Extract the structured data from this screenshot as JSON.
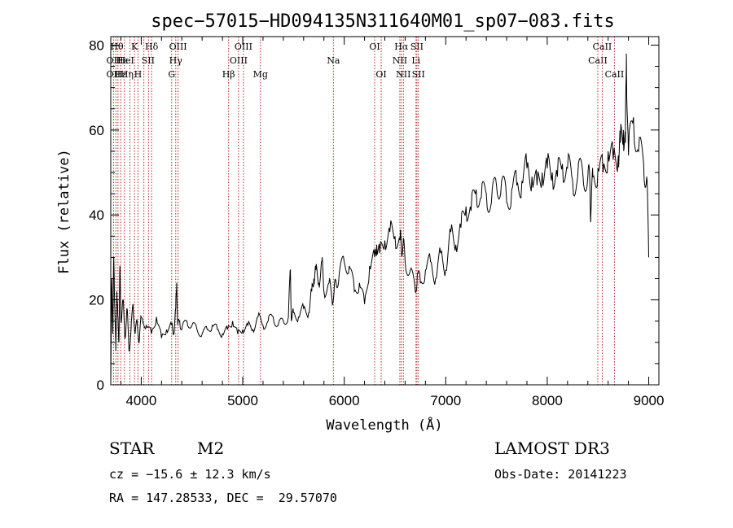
{
  "info": {
    "object_class": "STAR",
    "subclass": "M2",
    "survey": "LAMOST DR3",
    "redshift": "cz = −15.6 ± 12.3 km/s",
    "obs_date": "Obs-Date: 20141223",
    "coords": "RA = 147.28533, DEC =  29.57070"
  },
  "chart_data": {
    "type": "line",
    "title": "spec−57015−HD094135N311640M01_sp07−083.fits",
    "xlabel": "Wavelength (Å)",
    "ylabel": "Flux (relative)",
    "xlim": [
      3700,
      9100
    ],
    "ylim": [
      0,
      82
    ],
    "xticks": [
      4000,
      5000,
      6000,
      7000,
      8000,
      9000
    ],
    "yticks": [
      0,
      20,
      40,
      60,
      80
    ],
    "grid": false,
    "series": [
      {
        "x": [
          3700,
          3710,
          3720,
          3730,
          3740,
          3750,
          3760,
          3770,
          3780,
          3790,
          3800,
          3820,
          3840,
          3860,
          3880,
          3900,
          3920,
          3940,
          3960,
          3980,
          4000,
          4050,
          4100,
          4150,
          4200,
          4250,
          4300,
          4320,
          4340,
          4350,
          4360,
          4380,
          4400,
          4450,
          4500,
          4550,
          4600,
          4650,
          4700,
          4750,
          4800,
          4850,
          4900,
          4950,
          5000,
          5050,
          5100,
          5150,
          5200,
          5250,
          5300,
          5350,
          5400,
          5450,
          5470,
          5480,
          5500,
          5550,
          5600,
          5650,
          5680,
          5700,
          5720,
          5750,
          5780,
          5800,
          5850,
          5880,
          5900,
          5920,
          5950,
          6000,
          6050,
          6100,
          6150,
          6200,
          6250,
          6300,
          6320,
          6350,
          6400,
          6450,
          6500,
          6550,
          6563,
          6580,
          6600,
          6650,
          6700,
          6720,
          6750,
          6800,
          6850,
          6900,
          6950,
          7000,
          7050,
          7100,
          7150,
          7200,
          7250,
          7300,
          7350,
          7400,
          7450,
          7500,
          7550,
          7600,
          7650,
          7700,
          7750,
          7800,
          7850,
          7900,
          7950,
          8000,
          8050,
          8100,
          8150,
          8200,
          8250,
          8300,
          8350,
          8400,
          8420,
          8430,
          8450,
          8500,
          8550,
          8600,
          8650,
          8700,
          8720,
          8750,
          8770,
          8780,
          8800,
          8850,
          8900,
          8950,
          8980,
          9000
        ],
        "y": [
          0,
          25,
          12,
          30,
          18,
          8,
          22,
          16,
          10,
          28,
          15,
          20,
          11,
          18,
          8,
          13,
          19,
          12,
          15,
          10,
          16,
          14,
          12,
          16,
          11,
          13,
          14,
          12,
          18,
          24,
          14,
          15,
          13,
          15,
          14,
          13,
          12,
          13,
          14,
          13,
          12,
          13,
          15,
          12,
          13,
          14,
          13,
          16,
          14,
          15,
          16,
          14,
          15,
          16,
          27,
          15,
          17,
          16,
          18,
          17,
          22,
          25,
          27,
          24,
          29,
          22,
          24,
          20,
          22,
          24,
          26,
          29,
          28,
          22,
          24,
          19,
          28,
          30,
          33,
          31,
          34,
          36,
          35,
          34,
          33,
          33,
          29,
          27,
          22,
          26,
          24,
          27,
          29,
          25,
          31,
          27,
          36,
          33,
          37,
          42,
          41,
          46,
          44,
          45,
          43,
          47,
          48,
          43,
          46,
          47,
          48,
          51,
          49,
          47,
          50,
          51,
          50,
          49,
          52,
          51,
          48,
          49,
          50,
          49,
          47,
          40,
          49,
          51,
          50,
          55,
          53,
          54,
          57,
          60,
          57,
          78,
          54,
          63,
          55,
          52,
          49,
          30
        ]
      }
    ],
    "lines": [
      {
        "w": 3727,
        "label": "OII",
        "row": 1
      },
      {
        "w": 3750,
        "label": "",
        "row": 0
      },
      {
        "w": 3771,
        "label": "",
        "row": 0
      },
      {
        "w": 3798,
        "label": "",
        "row": 0
      },
      {
        "w": 3835,
        "label": "",
        "row": 0
      },
      {
        "w": 3889,
        "label": "",
        "row": 0
      },
      {
        "w": 3934,
        "label": "K",
        "row": 0
      },
      {
        "w": 3968,
        "label": "",
        "row": 0
      },
      {
        "w": 4026,
        "label": "",
        "row": 0
      },
      {
        "w": 4072,
        "label": "",
        "row": 0
      },
      {
        "w": 4102,
        "label": "Hδ",
        "row": 0
      },
      {
        "w": 4300,
        "label": "G",
        "row": 2
      },
      {
        "w": 4340,
        "label": "Hγ",
        "row": 1
      },
      {
        "w": 4363,
        "label": "OIII",
        "row": 0
      },
      {
        "w": 4861,
        "label": "Hβ",
        "row": 2
      },
      {
        "w": 4959,
        "label": "OIII",
        "row": 1
      },
      {
        "w": 5007,
        "label": "OIII",
        "row": 0
      },
      {
        "w": 5175,
        "label": "Mg",
        "row": 2
      },
      {
        "w": 5893,
        "label": "Na",
        "row": 1
      },
      {
        "w": 6300,
        "label": "OI",
        "row": 0
      },
      {
        "w": 6364,
        "label": "OI",
        "row": 2
      },
      {
        "w": 6548,
        "label": "NII",
        "row": 1
      },
      {
        "w": 6563,
        "label": "Hα",
        "row": 0
      },
      {
        "w": 6583,
        "label": "NII",
        "row": 2
      },
      {
        "w": 6707,
        "label": "Li",
        "row": 1
      },
      {
        "w": 6716,
        "label": "SII",
        "row": 0
      },
      {
        "w": 6731,
        "label": "SII",
        "row": 2
      },
      {
        "w": 8498,
        "label": "CaII",
        "row": 1
      },
      {
        "w": 8542,
        "label": "CaII",
        "row": 0
      },
      {
        "w": 8662,
        "label": "CaII",
        "row": 2
      }
    ],
    "line_labels_crowded": [
      {
        "label": "Hθ",
        "row": 0,
        "w": 3760
      },
      {
        "label": "Hε",
        "row": 1,
        "w": 3810
      },
      {
        "label": "HeI",
        "row": 1,
        "w": 3850
      },
      {
        "label": "OII",
        "row": 2,
        "w": 3727
      },
      {
        "label": "Hε",
        "row": 2,
        "w": 3800
      },
      {
        "label": "Hη",
        "row": 2,
        "w": 3860
      },
      {
        "label": "H",
        "row": 2,
        "w": 3968
      },
      {
        "label": "SII",
        "row": 1,
        "w": 4068
      }
    ]
  }
}
